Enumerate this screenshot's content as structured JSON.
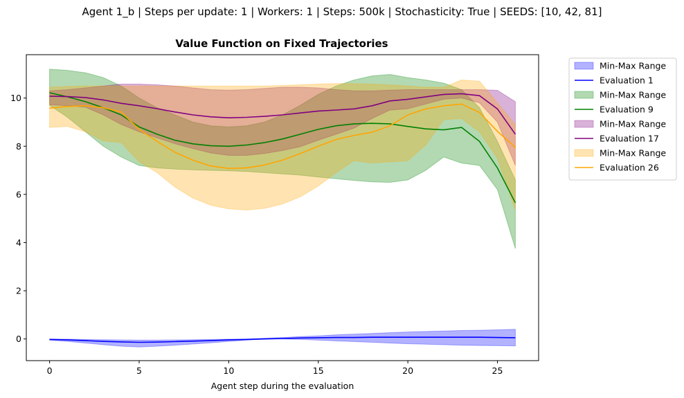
{
  "chart_data": {
    "type": "line",
    "suptitle": "Agent 1_b | Steps per update: 1 | Workers: 1 | Steps: 500k | Stochasticity: True | SEEDS: [10, 42, 81]",
    "title": "Value Function on Fixed Trajectories",
    "xlabel": "Agent step during the evaluation",
    "ylabel": "",
    "xlim": [
      -1.3,
      27.3
    ],
    "ylim": [
      -0.9,
      11.8
    ],
    "xticks": [
      0,
      5,
      10,
      15,
      20,
      25
    ],
    "yticks": [
      0,
      2,
      4,
      6,
      8,
      10
    ],
    "grid": false,
    "legend_placement": "outside-upper-right",
    "x": [
      0,
      1,
      2,
      3,
      4,
      5,
      6,
      7,
      8,
      9,
      10,
      11,
      12,
      13,
      14,
      15,
      16,
      17,
      18,
      19,
      20,
      21,
      22,
      23,
      24,
      25,
      26
    ],
    "series": [
      {
        "name": "Evaluation 1",
        "band_name": "Min-Max Range",
        "color": "#0000ff",
        "band_color": "#0000ff",
        "mean": [
          -0.02,
          -0.04,
          -0.07,
          -0.1,
          -0.12,
          -0.14,
          -0.13,
          -0.11,
          -0.09,
          -0.07,
          -0.04,
          -0.02,
          0.0,
          0.02,
          0.04,
          0.05,
          0.06,
          0.06,
          0.07,
          0.07,
          0.07,
          0.07,
          0.07,
          0.07,
          0.07,
          0.06,
          0.05
        ],
        "min": [
          -0.05,
          -0.1,
          -0.17,
          -0.24,
          -0.3,
          -0.33,
          -0.3,
          -0.26,
          -0.21,
          -0.16,
          -0.1,
          -0.05,
          0.0,
          0.0,
          -0.02,
          -0.05,
          -0.08,
          -0.11,
          -0.14,
          -0.17,
          -0.2,
          -0.22,
          -0.24,
          -0.26,
          -0.27,
          -0.28,
          -0.29
        ],
        "max": [
          0.0,
          -0.01,
          -0.02,
          -0.03,
          -0.04,
          -0.05,
          -0.05,
          -0.04,
          -0.03,
          -0.02,
          -0.01,
          0.0,
          0.03,
          0.06,
          0.1,
          0.13,
          0.17,
          0.2,
          0.23,
          0.26,
          0.29,
          0.31,
          0.33,
          0.35,
          0.36,
          0.38,
          0.4
        ]
      },
      {
        "name": "Evaluation 9",
        "band_name": "Min-Max Range",
        "color": "#008000",
        "band_color": "#008000",
        "mean": [
          10.22,
          10.05,
          9.85,
          9.6,
          9.3,
          8.8,
          8.5,
          8.25,
          8.1,
          8.02,
          8.0,
          8.05,
          8.15,
          8.3,
          8.5,
          8.7,
          8.85,
          8.93,
          8.95,
          8.93,
          8.82,
          8.72,
          8.68,
          8.78,
          8.2,
          7.1,
          5.65
        ],
        "min": [
          9.7,
          9.2,
          8.6,
          8.0,
          7.55,
          7.2,
          7.1,
          7.05,
          7.02,
          7.0,
          6.98,
          6.95,
          6.9,
          6.85,
          6.8,
          6.72,
          6.65,
          6.58,
          6.52,
          6.5,
          6.6,
          7.0,
          7.55,
          7.3,
          7.2,
          6.2,
          3.75
        ],
        "max": [
          11.2,
          11.15,
          11.05,
          10.85,
          10.5,
          10.0,
          9.6,
          9.3,
          9.0,
          8.85,
          8.8,
          8.85,
          9.0,
          9.3,
          9.7,
          10.15,
          10.5,
          10.75,
          10.92,
          10.98,
          10.85,
          10.75,
          10.62,
          10.35,
          9.6,
          8.2,
          6.6
        ]
      },
      {
        "name": "Evaluation 17",
        "band_name": "Min-Max Range",
        "color": "#800080",
        "band_color": "#800080",
        "mean": [
          10.08,
          10.06,
          10.02,
          9.92,
          9.78,
          9.68,
          9.56,
          9.42,
          9.3,
          9.22,
          9.18,
          9.2,
          9.24,
          9.3,
          9.38,
          9.46,
          9.5,
          9.55,
          9.68,
          9.88,
          9.95,
          10.05,
          10.15,
          10.18,
          10.1,
          9.55,
          8.5
        ],
        "min": [
          9.72,
          9.68,
          9.62,
          9.3,
          8.9,
          8.6,
          8.35,
          8.1,
          7.9,
          7.72,
          7.62,
          7.62,
          7.7,
          7.82,
          7.98,
          8.25,
          8.5,
          8.75,
          9.15,
          9.5,
          9.55,
          9.75,
          9.95,
          10.0,
          9.8,
          9.0,
          7.2
        ],
        "max": [
          10.3,
          10.35,
          10.42,
          10.5,
          10.58,
          10.58,
          10.55,
          10.5,
          10.42,
          10.35,
          10.33,
          10.35,
          10.4,
          10.45,
          10.45,
          10.42,
          10.35,
          10.3,
          10.3,
          10.33,
          10.35,
          10.35,
          10.35,
          10.35,
          10.35,
          10.32,
          9.85
        ]
      },
      {
        "name": "Evaluation 26",
        "band_name": "Min-Max Range",
        "color": "#ffa500",
        "band_color": "#ffa500",
        "mean": [
          9.58,
          9.65,
          9.68,
          9.6,
          9.42,
          8.7,
          8.2,
          7.75,
          7.42,
          7.18,
          7.08,
          7.1,
          7.22,
          7.42,
          7.7,
          8.0,
          8.28,
          8.45,
          8.58,
          8.85,
          9.3,
          9.55,
          9.68,
          9.75,
          9.4,
          8.62,
          7.95
        ],
        "min": [
          8.78,
          8.82,
          8.6,
          8.22,
          8.15,
          7.35,
          6.9,
          6.3,
          5.85,
          5.55,
          5.4,
          5.35,
          5.42,
          5.6,
          5.9,
          6.35,
          6.9,
          7.4,
          7.3,
          7.35,
          7.4,
          8.05,
          9.1,
          9.15,
          8.6,
          7.5,
          5.35
        ],
        "max": [
          10.45,
          10.48,
          10.5,
          10.5,
          10.5,
          10.5,
          10.5,
          10.5,
          10.5,
          10.5,
          10.5,
          10.5,
          10.5,
          10.52,
          10.55,
          10.58,
          10.6,
          10.6,
          10.58,
          10.55,
          10.5,
          10.45,
          10.45,
          10.75,
          10.7,
          9.8,
          8.9
        ]
      }
    ]
  }
}
